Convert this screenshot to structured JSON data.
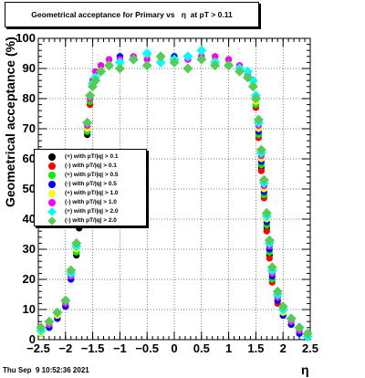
{
  "header": {
    "title": "Geometrical acceptance for Primary vs   η  at pT > 0.11",
    "timestamp": "Thu Sep  9 10:52:36 2021"
  },
  "chart_data": {
    "type": "scatter",
    "title": "Geometrical acceptance for Primary vs   η  at pT > 0.11",
    "xlabel": "η",
    "ylabel": "Geometrical acceptance (%)",
    "xlim": [
      -2.5,
      2.5
    ],
    "ylim": [
      0,
      100
    ],
    "x_ticks": [
      "−2.5",
      "−2",
      "−1.5",
      "−1",
      "−0.5",
      "0",
      "0.5",
      "1",
      "1.5",
      "2",
      "2.5"
    ],
    "y_ticks": [
      "0",
      "10",
      "20",
      "30",
      "40",
      "50",
      "60",
      "70",
      "80",
      "90",
      "100"
    ],
    "grid": true,
    "legend_position": "left",
    "series": [
      {
        "name": "(+) with pT/|q| > 0.1",
        "color": "#000000",
        "marker": "circle",
        "x": [
          -2.45,
          -2.3,
          -2.15,
          -2.0,
          -1.9,
          -1.8,
          -1.75,
          -1.7,
          -1.65,
          -1.6,
          -1.55,
          -1.5,
          -1.45,
          -1.35,
          -1.2,
          -1.0,
          -0.75,
          -0.5,
          -0.25,
          0.0,
          0.25,
          0.5,
          0.75,
          1.0,
          1.2,
          1.35,
          1.45,
          1.5,
          1.55,
          1.6,
          1.65,
          1.7,
          1.75,
          1.8,
          1.9,
          2.0,
          2.15,
          2.3,
          2.45
        ],
        "y": [
          2,
          4,
          7,
          11,
          20,
          28,
          37,
          48,
          57,
          68,
          78,
          84,
          87,
          90,
          92,
          94,
          94,
          94,
          93,
          94,
          94,
          94,
          94,
          92,
          90,
          87,
          84,
          78,
          68,
          57,
          48,
          37,
          28,
          20,
          13,
          9,
          5,
          3,
          1
        ]
      },
      {
        "name": "(-) with pT/|q| > 0.1",
        "color": "#ff0000",
        "marker": "circle",
        "x": [
          -2.45,
          -2.3,
          -2.15,
          -2.0,
          -1.9,
          -1.8,
          -1.75,
          -1.7,
          -1.65,
          -1.6,
          -1.55,
          -1.5,
          -1.45,
          -1.35,
          -1.2,
          -1.0,
          -0.75,
          -0.5,
          -0.25,
          0.0,
          0.25,
          0.5,
          0.75,
          1.0,
          1.2,
          1.35,
          1.45,
          1.5,
          1.55,
          1.6,
          1.65,
          1.7,
          1.75,
          1.8,
          1.9,
          2.0,
          2.15,
          2.3,
          2.45
        ],
        "y": [
          2,
          5,
          8,
          12,
          21,
          29,
          38,
          49,
          58,
          69,
          78,
          85,
          88,
          90,
          92,
          93,
          93,
          94,
          94,
          93,
          93,
          94,
          93,
          92,
          90,
          87,
          84,
          77,
          67,
          56,
          47,
          36,
          27,
          19,
          12,
          8,
          5,
          3,
          1
        ]
      },
      {
        "name": "(+) with pT/|q| > 0.5",
        "color": "#00ee00",
        "marker": "circle",
        "x": [
          -2.45,
          -2.3,
          -2.15,
          -2.0,
          -1.9,
          -1.8,
          -1.75,
          -1.7,
          -1.65,
          -1.6,
          -1.55,
          -1.5,
          -1.45,
          -1.35,
          -1.2,
          -1.0,
          -0.75,
          -0.5,
          -0.25,
          0.0,
          0.25,
          0.5,
          0.75,
          1.0,
          1.2,
          1.35,
          1.45,
          1.5,
          1.55,
          1.6,
          1.65,
          1.7,
          1.75,
          1.8,
          1.9,
          2.0,
          2.15,
          2.3,
          2.45
        ],
        "y": [
          3,
          5,
          8,
          12,
          21,
          29,
          38,
          50,
          59,
          69,
          79,
          85,
          88,
          91,
          93,
          94,
          94,
          93,
          94,
          94,
          94,
          93,
          94,
          93,
          91,
          88,
          85,
          78,
          68,
          58,
          48,
          38,
          29,
          20,
          13,
          9,
          6,
          3,
          1
        ]
      },
      {
        "name": "(-) with pT/|q| > 0.5",
        "color": "#0000ff",
        "marker": "circle",
        "x": [
          -2.45,
          -2.3,
          -2.15,
          -2.0,
          -1.9,
          -1.8,
          -1.75,
          -1.7,
          -1.65,
          -1.6,
          -1.55,
          -1.5,
          -1.45,
          -1.35,
          -1.2,
          -1.0,
          -0.75,
          -0.5,
          -0.25,
          0.0,
          0.25,
          0.5,
          0.75,
          1.0,
          1.2,
          1.35,
          1.45,
          1.5,
          1.55,
          1.6,
          1.65,
          1.7,
          1.75,
          1.8,
          1.9,
          2.0,
          2.15,
          2.3,
          2.45
        ],
        "y": [
          2,
          4,
          7,
          11,
          20,
          30,
          40,
          50,
          58,
          70,
          80,
          86,
          88,
          91,
          93,
          94,
          93,
          94,
          93,
          94,
          93,
          94,
          93,
          93,
          91,
          88,
          85,
          79,
          69,
          59,
          49,
          39,
          30,
          21,
          13,
          8,
          5,
          2,
          1
        ]
      },
      {
        "name": "(+) with pT/|q| > 1.0",
        "color": "#ffff00",
        "marker": "circle",
        "x": [
          -2.45,
          -2.3,
          -2.15,
          -2.0,
          -1.9,
          -1.8,
          -1.75,
          -1.7,
          -1.65,
          -1.6,
          -1.55,
          -1.5,
          -1.45,
          -1.35,
          -1.2,
          -1.0,
          -0.75,
          -0.5,
          -0.25,
          0.0,
          0.25,
          0.5,
          0.75,
          1.0,
          1.2,
          1.35,
          1.45,
          1.5,
          1.55,
          1.6,
          1.65,
          1.7,
          1.75,
          1.8,
          1.9,
          2.0,
          2.15,
          2.3,
          2.45
        ],
        "y": [
          2,
          5,
          8,
          13,
          22,
          30,
          39,
          51,
          59,
          70,
          80,
          85,
          88,
          90,
          92,
          93,
          94,
          94,
          93,
          93,
          94,
          94,
          93,
          92,
          90,
          88,
          85,
          79,
          70,
          60,
          50,
          40,
          31,
          22,
          14,
          9,
          6,
          3,
          1
        ]
      },
      {
        "name": "(-) with pT/|q| > 1.0",
        "color": "#ff00ff",
        "marker": "circle",
        "x": [
          -2.45,
          -2.3,
          -2.15,
          -2.0,
          -1.9,
          -1.8,
          -1.75,
          -1.7,
          -1.65,
          -1.6,
          -1.55,
          -1.5,
          -1.45,
          -1.35,
          -1.2,
          -1.0,
          -0.75,
          -0.5,
          -0.25,
          0.0,
          0.25,
          0.5,
          0.75,
          1.0,
          1.2,
          1.35,
          1.45,
          1.5,
          1.55,
          1.6,
          1.65,
          1.7,
          1.75,
          1.8,
          1.9,
          2.0,
          2.15,
          2.3,
          2.45
        ],
        "y": [
          3,
          5,
          9,
          12,
          21,
          31,
          40,
          51,
          60,
          71,
          80,
          86,
          89,
          91,
          93,
          93,
          94,
          93,
          94,
          93,
          93,
          94,
          94,
          93,
          91,
          88,
          86,
          80,
          71,
          61,
          51,
          41,
          31,
          22,
          14,
          10,
          6,
          3,
          1
        ]
      },
      {
        "name": "(+) with pT/|q| > 2.0",
        "color": "#00ffff",
        "marker": "diamond",
        "x": [
          -2.45,
          -2.3,
          -2.15,
          -2.0,
          -1.9,
          -1.8,
          -1.75,
          -1.7,
          -1.65,
          -1.6,
          -1.55,
          -1.5,
          -1.45,
          -1.35,
          -1.2,
          -1.0,
          -0.75,
          -0.5,
          -0.25,
          0.0,
          0.25,
          0.5,
          0.75,
          1.0,
          1.2,
          1.35,
          1.45,
          1.5,
          1.55,
          1.6,
          1.65,
          1.7,
          1.75,
          1.8,
          1.9,
          2.0,
          2.15,
          2.3,
          2.45
        ],
        "y": [
          3,
          6,
          9,
          13,
          22,
          31,
          41,
          52,
          61,
          72,
          81,
          85,
          87,
          89,
          91,
          92,
          93,
          95,
          92,
          93,
          94,
          96,
          92,
          91,
          90,
          89,
          86,
          81,
          72,
          62,
          52,
          41,
          32,
          23,
          15,
          10,
          7,
          4,
          1
        ]
      },
      {
        "name": "(-) with pT/|q| > 2.0",
        "color": "#55cc55",
        "marker": "diamond",
        "x": [
          -2.45,
          -2.3,
          -2.15,
          -2.0,
          -1.9,
          -1.8,
          -1.75,
          -1.7,
          -1.65,
          -1.6,
          -1.55,
          -1.5,
          -1.45,
          -1.35,
          -1.2,
          -1.0,
          -0.75,
          -0.5,
          -0.25,
          0.0,
          0.25,
          0.5,
          0.75,
          1.0,
          1.2,
          1.35,
          1.45,
          1.5,
          1.55,
          1.6,
          1.65,
          1.7,
          1.75,
          1.8,
          1.9,
          2.0,
          2.15,
          2.3,
          2.45
        ],
        "y": [
          4,
          6,
          9,
          13,
          23,
          32,
          41,
          52,
          62,
          72,
          81,
          84,
          86,
          89,
          91,
          90,
          93,
          91,
          94,
          92,
          90,
          93,
          91,
          91,
          89,
          87,
          84,
          80,
          73,
          63,
          53,
          42,
          33,
          24,
          16,
          11,
          7,
          4,
          2
        ]
      }
    ]
  }
}
